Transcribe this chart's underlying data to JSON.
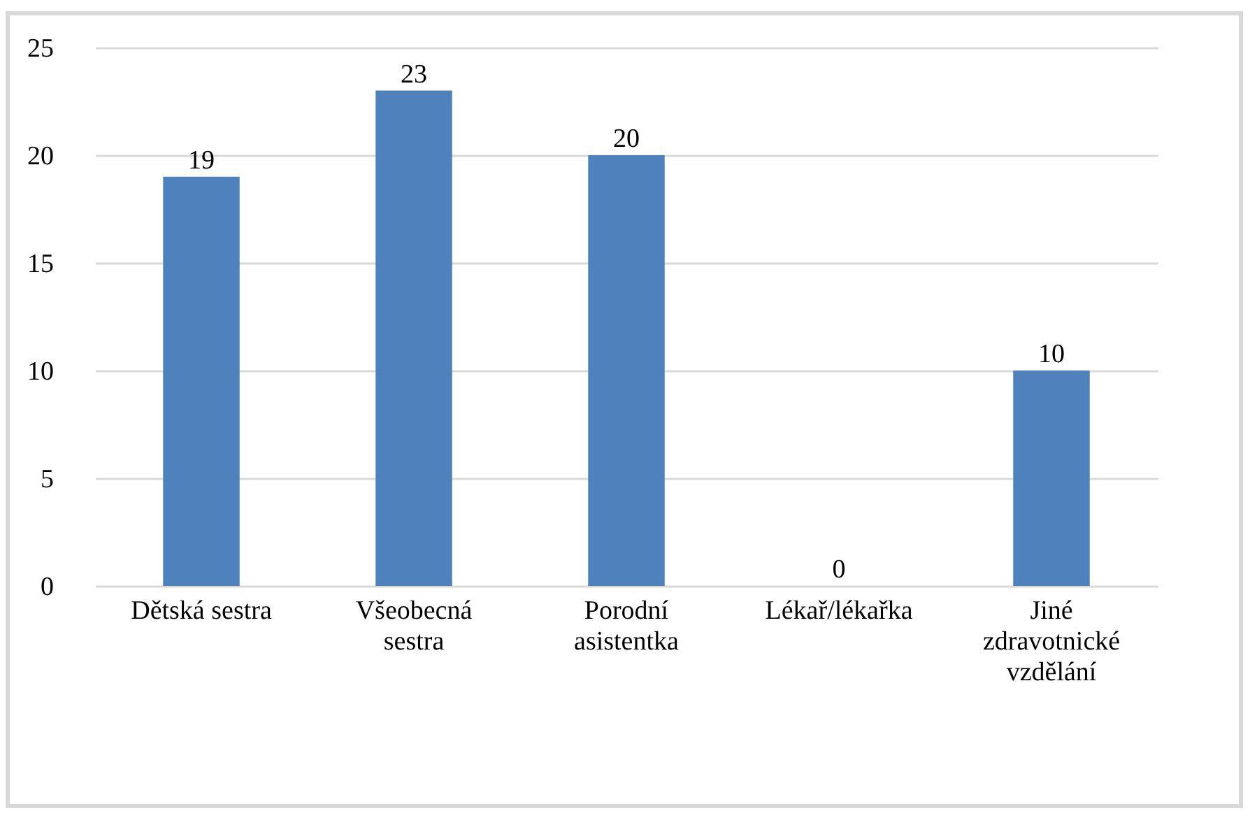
{
  "chart_data": {
    "type": "bar",
    "categories": [
      "Dětská sestra",
      "Všeobecná sestra",
      "Porodní asistentka",
      "Lékař/lékařka",
      "Jiné zdravotnické vzdělání"
    ],
    "values": [
      19,
      23,
      20,
      0,
      10
    ],
    "color": "#4f81bd",
    "ylim": [
      0,
      25
    ],
    "yticks": [
      0,
      5,
      10,
      15,
      20,
      25
    ],
    "grid": "y",
    "data_labels": true
  }
}
